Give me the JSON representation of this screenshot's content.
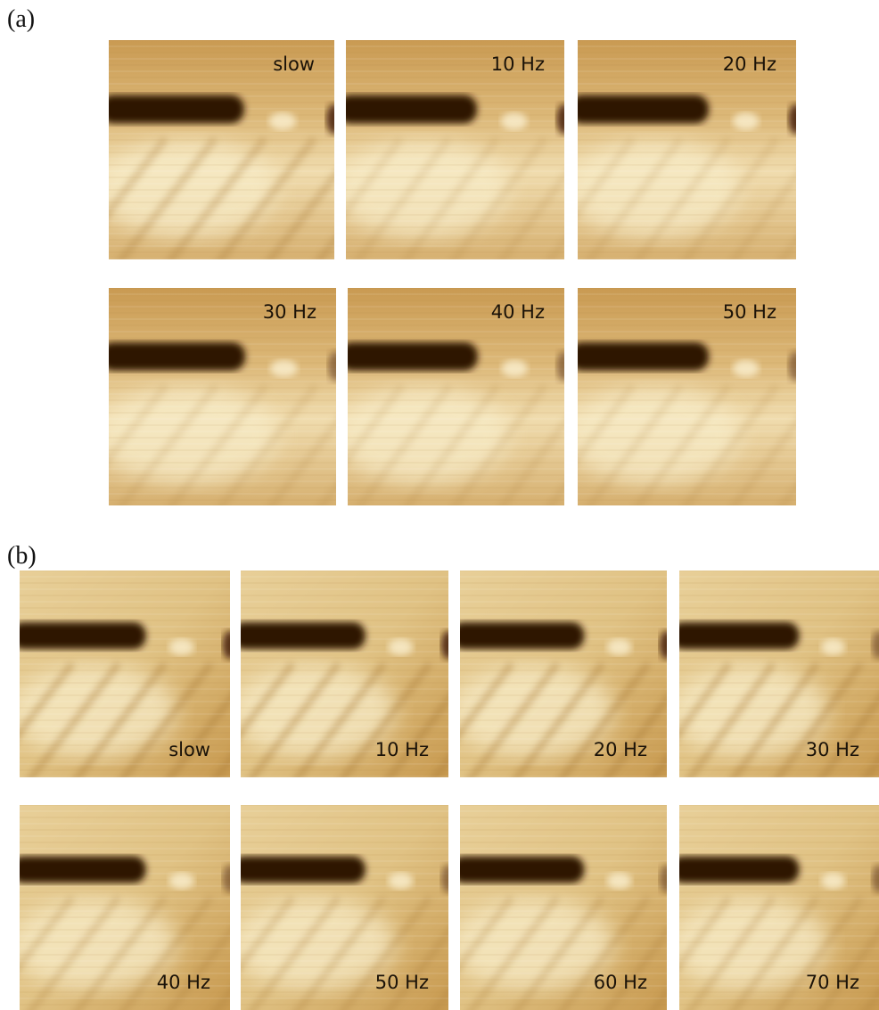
{
  "panel_a": {
    "label": "(a)",
    "images": [
      {
        "label": "slow"
      },
      {
        "label": "10 Hz"
      },
      {
        "label": "20 Hz"
      },
      {
        "label": "30 Hz"
      },
      {
        "label": "40 Hz"
      },
      {
        "label": "50 Hz"
      }
    ]
  },
  "panel_b": {
    "label": "(b)",
    "images": [
      {
        "label": "slow"
      },
      {
        "label": "10 Hz"
      },
      {
        "label": "20 Hz"
      },
      {
        "label": "30 Hz"
      },
      {
        "label": "40 Hz"
      },
      {
        "label": "50 Hz"
      },
      {
        "label": "60 Hz"
      },
      {
        "label": "70 Hz"
      }
    ]
  }
}
